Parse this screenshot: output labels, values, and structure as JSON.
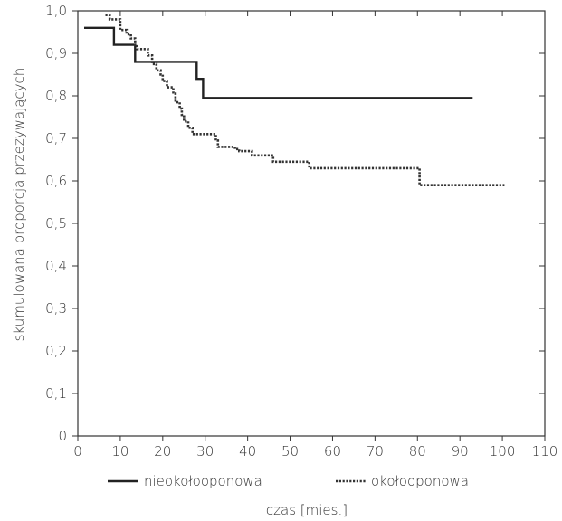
{
  "chart_data": {
    "type": "line",
    "xlabel": "czas [mies.]",
    "ylabel": "skumulowana proporcja przeżywających",
    "xlim": [
      0,
      110
    ],
    "ylim": [
      0,
      1.0
    ],
    "xticks": [
      "0",
      "10",
      "20",
      "30",
      "40",
      "50",
      "60",
      "70",
      "80",
      "90",
      "100",
      "110"
    ],
    "yticks": [
      "0",
      "0,1",
      "0,2",
      "0,3",
      "0,4",
      "0,5",
      "0,6",
      "0,7",
      "0,8",
      "0,9",
      "1,0"
    ],
    "legend": {
      "placement": "bottom"
    },
    "series": [
      {
        "name": "nieokołooponowa",
        "style": "solid",
        "color": "#222222",
        "points": [
          [
            1.5,
            0.96
          ],
          [
            8.5,
            0.96
          ],
          [
            8.5,
            0.92
          ],
          [
            13.5,
            0.92
          ],
          [
            13.5,
            0.88
          ],
          [
            28,
            0.88
          ],
          [
            28,
            0.84
          ],
          [
            29.5,
            0.84
          ],
          [
            29.5,
            0.795
          ],
          [
            93,
            0.795
          ]
        ]
      },
      {
        "name": "okołooponowa",
        "style": "dotted",
        "color": "#333333",
        "points": [
          [
            6.5,
            0.99
          ],
          [
            7.5,
            0.99
          ],
          [
            7.5,
            0.98
          ],
          [
            10,
            0.98
          ],
          [
            10,
            0.955
          ],
          [
            11.5,
            0.955
          ],
          [
            11.5,
            0.945
          ],
          [
            12.5,
            0.945
          ],
          [
            12.5,
            0.935
          ],
          [
            13.5,
            0.935
          ],
          [
            13.5,
            0.92
          ],
          [
            14,
            0.92
          ],
          [
            14,
            0.91
          ],
          [
            16.5,
            0.91
          ],
          [
            16.5,
            0.895
          ],
          [
            17.5,
            0.895
          ],
          [
            17.5,
            0.875
          ],
          [
            18.5,
            0.875
          ],
          [
            18.5,
            0.86
          ],
          [
            19.5,
            0.86
          ],
          [
            19.5,
            0.85
          ],
          [
            20,
            0.85
          ],
          [
            20,
            0.835
          ],
          [
            21,
            0.835
          ],
          [
            21,
            0.82
          ],
          [
            22.5,
            0.82
          ],
          [
            22.5,
            0.805
          ],
          [
            23,
            0.805
          ],
          [
            23,
            0.785
          ],
          [
            24,
            0.785
          ],
          [
            24,
            0.77
          ],
          [
            24.5,
            0.77
          ],
          [
            24.5,
            0.755
          ],
          [
            25,
            0.755
          ],
          [
            25,
            0.74
          ],
          [
            26,
            0.74
          ],
          [
            26,
            0.725
          ],
          [
            27,
            0.725
          ],
          [
            27,
            0.71
          ],
          [
            32.5,
            0.71
          ],
          [
            32.5,
            0.695
          ],
          [
            33,
            0.695
          ],
          [
            33,
            0.68
          ],
          [
            37,
            0.68
          ],
          [
            37,
            0.675
          ],
          [
            38,
            0.675
          ],
          [
            38,
            0.67
          ],
          [
            41,
            0.67
          ],
          [
            41,
            0.66
          ],
          [
            46,
            0.66
          ],
          [
            46,
            0.645
          ],
          [
            54.5,
            0.645
          ],
          [
            54.5,
            0.63
          ],
          [
            80.5,
            0.63
          ],
          [
            80.5,
            0.59
          ],
          [
            100.5,
            0.59
          ]
        ]
      }
    ]
  }
}
